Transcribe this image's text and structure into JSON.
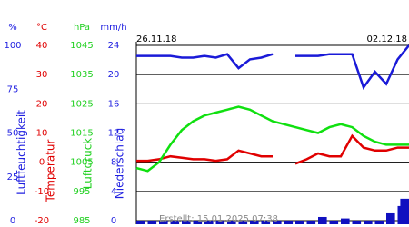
{
  "chart_data": {
    "type": "line",
    "x": [
      0,
      6,
      12,
      18,
      24,
      30,
      36,
      42,
      48,
      54,
      60,
      66,
      72,
      78,
      84,
      90,
      96,
      102,
      108,
      114,
      120,
      126,
      132,
      138,
      144
    ],
    "xlim": [
      0,
      144
    ],
    "xticks": [
      {
        "value": 0,
        "label": "26.11.18"
      },
      {
        "value": 144,
        "label": "02.12.18"
      }
    ],
    "axes": [
      {
        "unit": "%",
        "label": "Luftfeuchtigkeit",
        "color": "#2020e0",
        "lim": [
          0,
          100
        ],
        "ticks": [
          100,
          75,
          50,
          25,
          0
        ]
      },
      {
        "unit": "°C",
        "label": "Temperatur",
        "color": "#e00000",
        "lim": [
          -20,
          40
        ],
        "ticks": [
          40,
          30,
          20,
          10,
          0,
          -10,
          -20
        ]
      },
      {
        "unit": "hPa",
        "label": "Luftdruck",
        "color": "#20d020",
        "lim": [
          985,
          1045
        ],
        "ticks": [
          1045,
          1035,
          1025,
          1015,
          1005,
          995,
          985
        ]
      },
      {
        "unit": "mm/h",
        "label": "Niederschlag",
        "color": "#2020e0",
        "lim": [
          0,
          24
        ],
        "ticks": [
          24,
          20,
          16,
          12,
          8,
          4,
          0
        ]
      }
    ],
    "grid": true,
    "series": [
      {
        "kind": "line",
        "axis": 0,
        "color": "#1a1ad8",
        "values": [
          94,
          94,
          94,
          94,
          93,
          93,
          94,
          93,
          95,
          87,
          92,
          93,
          95,
          null,
          94,
          94,
          94,
          95,
          95,
          95,
          76,
          85,
          78,
          92,
          100
        ]
      },
      {
        "kind": "line",
        "axis": 1,
        "color": "#e00000",
        "values": [
          0.5,
          0.5,
          1,
          2,
          1.5,
          1,
          1,
          0.5,
          1,
          4,
          3,
          2,
          2,
          null,
          -0.5,
          1,
          3,
          2,
          2,
          9,
          5,
          4,
          4,
          5,
          5
        ]
      },
      {
        "kind": "line",
        "axis": 2,
        "color": "#10e010",
        "values": [
          1003,
          1002,
          1005,
          1011,
          1016,
          1019,
          1021,
          1022,
          1023,
          1024,
          1023,
          1021,
          1019,
          1018,
          1017,
          1016,
          1015,
          1017,
          1018,
          1017,
          1014,
          1012,
          1011,
          1011,
          1011
        ]
      },
      {
        "kind": "bar",
        "axis": 3,
        "color": "#1010c0",
        "values": [
          0,
          0,
          0,
          0,
          0,
          0,
          0,
          0,
          0,
          0,
          0,
          0,
          0,
          0,
          0,
          0,
          0.5,
          0,
          0.3,
          0,
          0,
          0,
          1,
          2,
          3
        ]
      }
    ],
    "footer": "Erstellt: 15.01.2025 07:38"
  }
}
